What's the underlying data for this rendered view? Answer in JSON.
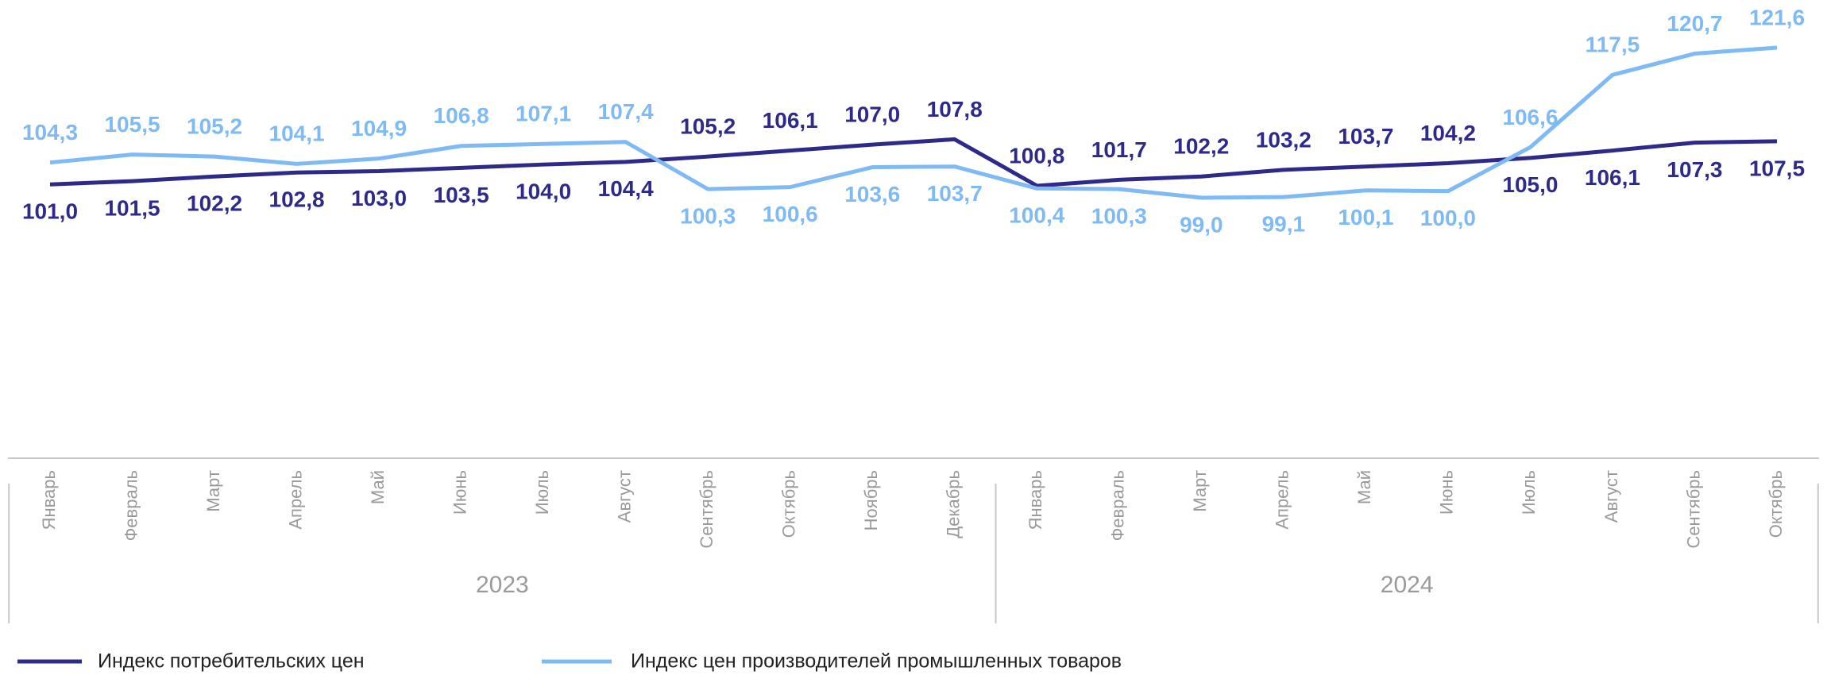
{
  "chart_data": {
    "type": "line",
    "groups": [
      {
        "name": "2023",
        "categories": [
          "Январь",
          "Февраль",
          "Март",
          "Апрель",
          "Май",
          "Июнь",
          "Июль",
          "Август",
          "Сентябрь",
          "Октябрь",
          "Ноябрь",
          "Декабрь"
        ]
      },
      {
        "name": "2024",
        "categories": [
          "Январь",
          "Февраль",
          "Март",
          "Апрель",
          "Май",
          "Июнь",
          "Июль",
          "Август",
          "Сентябрь",
          "Октябрь"
        ]
      }
    ],
    "series": [
      {
        "name": "Индекс потребительских цен",
        "color": "#2e2a8a",
        "values": [
          101.0,
          101.5,
          102.2,
          102.8,
          103.0,
          103.5,
          104.0,
          104.4,
          105.2,
          106.1,
          107.0,
          107.8,
          100.8,
          101.7,
          102.2,
          103.2,
          103.7,
          104.2,
          105.0,
          106.1,
          107.3,
          107.5
        ],
        "value_labels": [
          "101,0",
          "101,5",
          "102,2",
          "102,8",
          "103,0",
          "103,5",
          "104,0",
          "104,4",
          "105,2",
          "106,1",
          "107,0",
          "107,8",
          "100,8",
          "101,7",
          "102,2",
          "103,2",
          "103,7",
          "104,2",
          "105,0",
          "106,1",
          "107,3",
          "107,5"
        ]
      },
      {
        "name": "Индекс цен производителей промышленных товаров",
        "color": "#7fbaf5",
        "values": [
          104.3,
          105.5,
          105.2,
          104.1,
          104.9,
          106.8,
          107.1,
          107.4,
          100.3,
          100.6,
          103.6,
          103.7,
          100.4,
          100.3,
          99.0,
          99.1,
          100.1,
          100.0,
          106.6,
          117.5,
          120.7,
          121.6
        ],
        "value_labels": [
          "104,3",
          "105,5",
          "105,2",
          "104,1",
          "104,9",
          "106,8",
          "107,1",
          "107,4",
          "100,3",
          "100,6",
          "103,6",
          "103,7",
          "100,4",
          "100,3",
          "99,0",
          "99,1",
          "100,1",
          "100,0",
          "106,6",
          "117,5",
          "120,7",
          "121,6"
        ]
      }
    ]
  }
}
